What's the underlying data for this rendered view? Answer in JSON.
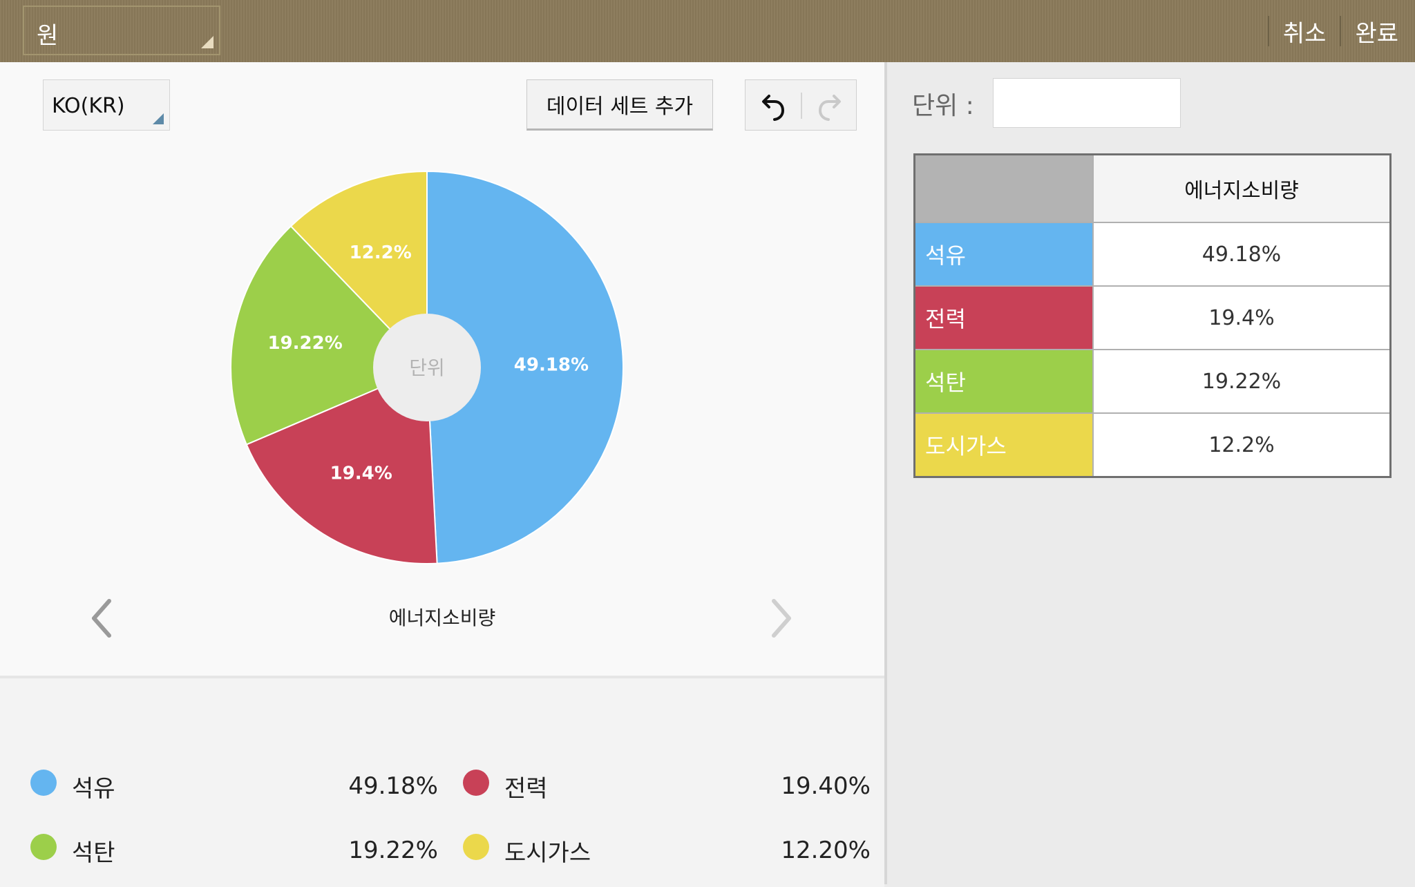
{
  "topbar": {
    "type_select": "원",
    "cancel": "취소",
    "done": "완료"
  },
  "toolbar": {
    "language": "KO(KR)",
    "add_dataset": "데이터 세트 추가"
  },
  "icons": {
    "undo": "undo-icon",
    "redo": "redo-icon",
    "prev": "chevron-left-icon",
    "next": "chevron-right-icon"
  },
  "chart_data": {
    "type": "pie",
    "title": "에너지소비량",
    "center_label": "단위",
    "categories": [
      "석유",
      "전력",
      "석탄",
      "도시가스"
    ],
    "values": [
      49.18,
      19.4,
      19.22,
      12.2
    ],
    "labels": [
      "49.18%",
      "19.4%",
      "19.22%",
      "12.2%"
    ],
    "colors": [
      "#64b5f0",
      "#c84157",
      "#9ccf4a",
      "#ebd84b"
    ],
    "start_angle_deg": 0,
    "direction": "clockwise",
    "donut": true,
    "legend": "bottom"
  },
  "legend": {
    "items": [
      {
        "name": "석유",
        "value": "49.18%",
        "color": "#64b5f0"
      },
      {
        "name": "전력",
        "value": "19.40%",
        "color": "#c84157"
      },
      {
        "name": "석탄",
        "value": "19.22%",
        "color": "#9ccf4a"
      },
      {
        "name": "도시가스",
        "value": "12.20%",
        "color": "#ebd84b"
      }
    ]
  },
  "editor": {
    "unit_label": "단위 :",
    "unit_value": "",
    "table": {
      "header": "에너지소비량",
      "rows": [
        {
          "category": "석유",
          "value": "49.18%",
          "color": "#64b5f0"
        },
        {
          "category": "전력",
          "value": "19.4%",
          "color": "#c84157"
        },
        {
          "category": "석탄",
          "value": "19.22%",
          "color": "#9ccf4a"
        },
        {
          "category": "도시가스",
          "value": "12.2%",
          "color": "#ebd84b"
        }
      ]
    }
  }
}
